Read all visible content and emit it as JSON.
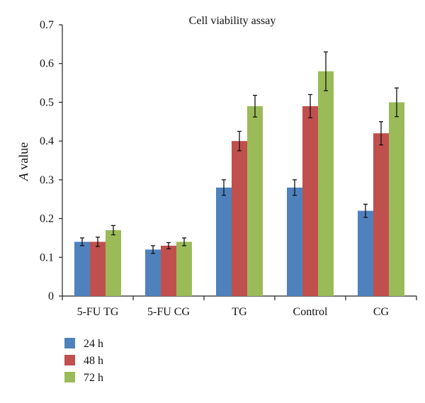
{
  "chart_data": {
    "type": "bar",
    "title": "Cell viability assay",
    "xlabel": "",
    "ylabel": "A value",
    "ylabel_parts": {
      "italic": "A",
      "rest": " value"
    },
    "ylim": [
      0,
      0.7
    ],
    "yticks": [
      0,
      0.1,
      0.2,
      0.3,
      0.4,
      0.5,
      0.6,
      0.7
    ],
    "ytick_labels": [
      "0",
      "0.1",
      "0.2",
      "0.3",
      "0.4",
      "0.5",
      "0.6",
      "0.7"
    ],
    "grid": false,
    "legend_position": "bottom-left",
    "categories": [
      "5-FU TG",
      "5-FU CG",
      "TG",
      "Control",
      "CG"
    ],
    "series": [
      {
        "name": "24 h",
        "color": "#4f81bd",
        "values": [
          0.14,
          0.12,
          0.28,
          0.28,
          0.22
        ],
        "error": [
          0.01,
          0.01,
          0.02,
          0.02,
          0.017
        ]
      },
      {
        "name": "48 h",
        "color": "#c0504d",
        "values": [
          0.14,
          0.13,
          0.4,
          0.49,
          0.42
        ],
        "error": [
          0.012,
          0.008,
          0.025,
          0.03,
          0.03
        ]
      },
      {
        "name": "72 h",
        "color": "#9bbb59",
        "values": [
          0.17,
          0.14,
          0.49,
          0.58,
          0.5
        ],
        "error": [
          0.012,
          0.01,
          0.028,
          0.05,
          0.037
        ]
      }
    ]
  }
}
